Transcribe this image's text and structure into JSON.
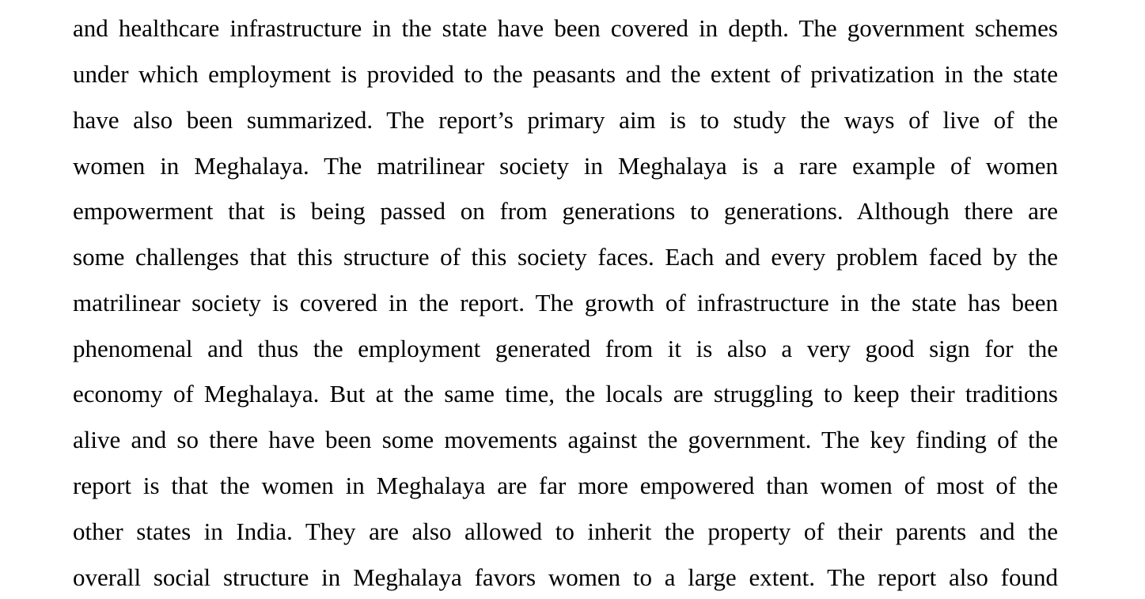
{
  "document": {
    "lines": [
      "and healthcare infrastructure in the state have been covered in depth. The government schemes",
      "under which employment is provided to the peasants and the extent of privatization in the state",
      "have also been summarized. The report’s primary aim is to study the ways of live of the",
      "women in Meghalaya. The matrilinear society in Meghalaya is a rare example of women",
      "empowerment that is being passed on from generations to generations. Although there are",
      "some challenges that this structure of this society faces. Each and every problem faced by the",
      "matrilinear society is covered in the report. The growth of infrastructure in the state has been",
      "phenomenal and thus the employment generated from it is also a very good sign for the",
      "economy of Meghalaya. But at the same time, the locals are struggling to keep their traditions",
      "alive and so there have been some movements against the government. The key finding of the",
      "report is that the women in Meghalaya are far more empowered than women of most of the",
      "other states in India. They are also allowed to inherit the property of their parents and the",
      "overall social structure in Meghalaya favors women to a large extent. The report also found"
    ]
  }
}
